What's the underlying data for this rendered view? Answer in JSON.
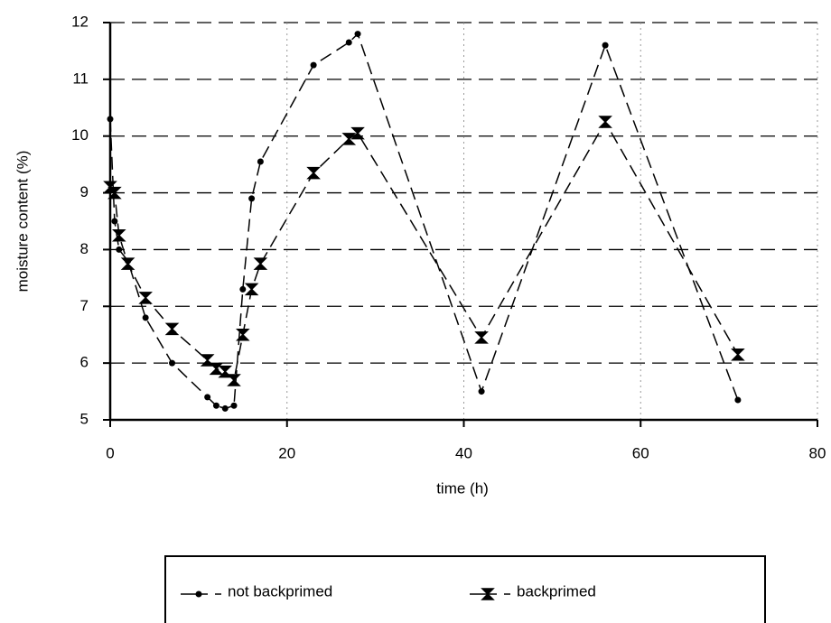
{
  "chart_data": {
    "type": "line",
    "x_label": "time (h)",
    "y_label": "moisture content (%)",
    "x": [
      0,
      0.5,
      1,
      2,
      4,
      7,
      11,
      12,
      13,
      14,
      15,
      16,
      17,
      23,
      27,
      28,
      42,
      56,
      71
    ],
    "series": [
      {
        "name": "not backprimed",
        "color": "#000000",
        "marker": "circle",
        "values": [
          10.3,
          8.5,
          8.0,
          7.8,
          6.8,
          6.0,
          5.4,
          5.25,
          5.2,
          5.25,
          7.3,
          8.9,
          9.55,
          11.25,
          11.65,
          11.8,
          5.5,
          11.6,
          5.35
        ]
      },
      {
        "name": "backprimed",
        "color": "#000000",
        "marker": "hourglass",
        "values": [
          9.1,
          9.0,
          8.25,
          7.75,
          7.15,
          6.6,
          6.05,
          5.9,
          5.85,
          5.7,
          6.5,
          7.3,
          7.75,
          9.35,
          9.95,
          10.05,
          6.45,
          10.25,
          6.15
        ]
      }
    ],
    "xlim": [
      0,
      80
    ],
    "xticks": [
      0,
      20,
      40,
      60,
      80
    ],
    "ylim": [
      5,
      12
    ],
    "yticks": [
      5,
      6,
      7,
      8,
      9,
      10,
      11,
      12
    ],
    "grid": true,
    "legend": "bottom"
  }
}
